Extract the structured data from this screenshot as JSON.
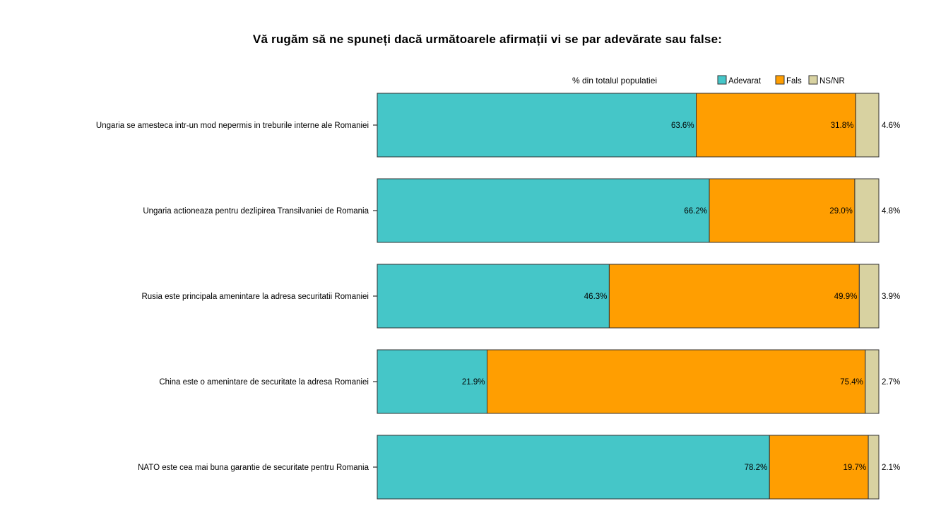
{
  "chart_data": {
    "type": "bar",
    "orientation": "horizontal",
    "stacked": true,
    "percent_stacked": true,
    "title": "Vă rugăm să ne spuneți dacă următoarele afirmații vi se par adevărate sau false:",
    "subtitle": "% din totalul populatiei",
    "categories": [
      "Ungaria se amesteca intr-un mod nepermis in treburile interne ale Romaniei",
      "Ungaria actioneaza pentru dezlipirea Transilvaniei de Romania",
      "Rusia este principala amenintare la adresa securitatii Romaniei",
      "China este o amenintare de securitate la adresa Romaniei",
      "NATO este cea mai buna garantie de securitate pentru Romania"
    ],
    "series": [
      {
        "name": "Adevarat",
        "color": "#45C6C8",
        "values": [
          63.6,
          66.2,
          46.3,
          21.9,
          78.2
        ],
        "labels": [
          "63.6%",
          "66.2%",
          "46.3%",
          "21.9%",
          "78.2%"
        ]
      },
      {
        "name": "Fals",
        "color": "#FF9E01",
        "values": [
          31.8,
          29.0,
          49.9,
          75.4,
          19.7
        ],
        "labels": [
          "31.8%",
          "29.0%",
          "49.9%",
          "75.4%",
          "19.7%"
        ]
      },
      {
        "name": "NS/NR",
        "color": "#D8D2A1",
        "values": [
          4.6,
          4.8,
          3.9,
          2.7,
          2.1
        ],
        "labels": [
          "4.6%",
          "4.8%",
          "3.9%",
          "2.7%",
          "2.1%"
        ]
      }
    ],
    "xlim": [
      0,
      100
    ],
    "grid": false,
    "legend_position": "top-right"
  }
}
